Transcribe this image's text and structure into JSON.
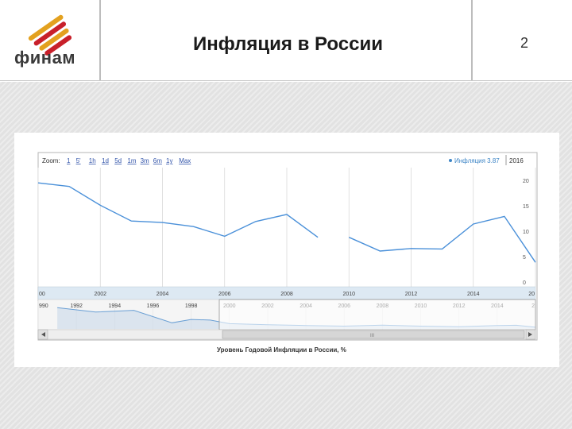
{
  "slide": {
    "title": "Инфляция в России",
    "page_number": "2",
    "logo_text": "финам"
  },
  "chart_toolbar": {
    "zoom_label": "Zoom:",
    "zoom_options": [
      "1",
      "5'",
      "1h",
      "1d",
      "5d",
      "1m",
      "3m",
      "6m",
      "1y",
      "Max"
    ],
    "legend_text": "Инфляция 3.87",
    "legend_color": "#3d85c6",
    "date_readout": "2016"
  },
  "chart_data": {
    "type": "line",
    "title": "",
    "caption": "Уровень Годовой Инфляции в России, %",
    "xlabel": "",
    "ylabel": "",
    "color": "#4a90d9",
    "x_tick_labels": [
      "00",
      "2002",
      "2004",
      "2006",
      "2008",
      "2010",
      "2012",
      "2014",
      "20"
    ],
    "y_tick_labels": [
      "20",
      "15",
      "10",
      "5",
      "0"
    ],
    "xlim": [
      2000,
      2016
    ],
    "ylim": [
      0,
      20
    ],
    "series": [
      {
        "segments": [
          [
            [
              2000,
              19.5
            ],
            [
              2001,
              18.8
            ],
            [
              2002,
              15.1
            ],
            [
              2003,
              12.0
            ],
            [
              2004,
              11.7
            ],
            [
              2005,
              10.9
            ],
            [
              2006,
              9.0
            ],
            [
              2007,
              11.9
            ],
            [
              2008,
              13.3
            ],
            [
              2009,
              8.8
            ]
          ],
          [
            [
              2010,
              8.8
            ],
            [
              2011,
              6.1
            ],
            [
              2012,
              6.6
            ],
            [
              2013,
              6.5
            ],
            [
              2014,
              11.4
            ],
            [
              2015,
              12.9
            ],
            [
              2016,
              3.87
            ]
          ]
        ]
      }
    ],
    "navigator": {
      "x_tick_labels": [
        "990",
        "1992",
        "1994",
        "1996",
        "1998",
        "2000",
        "2002",
        "2004",
        "2006",
        "2008",
        "2010",
        "2012",
        "2014",
        "2"
      ],
      "xlim": [
        1990,
        2016
      ],
      "series": [
        [
          1991,
          92
        ],
        [
          1993,
          72
        ],
        [
          1995,
          80
        ],
        [
          1997,
          24
        ],
        [
          1998,
          39
        ],
        [
          1999,
          36
        ],
        [
          2000,
          20
        ],
        [
          2002,
          15
        ],
        [
          2004,
          11.7
        ],
        [
          2006,
          9
        ],
        [
          2008,
          13.3
        ],
        [
          2010,
          8.8
        ],
        [
          2012,
          6.6
        ],
        [
          2014,
          11.4
        ],
        [
          2015,
          12.9
        ],
        [
          2016,
          3.87
        ]
      ]
    },
    "scrollbar_grip": "III"
  }
}
